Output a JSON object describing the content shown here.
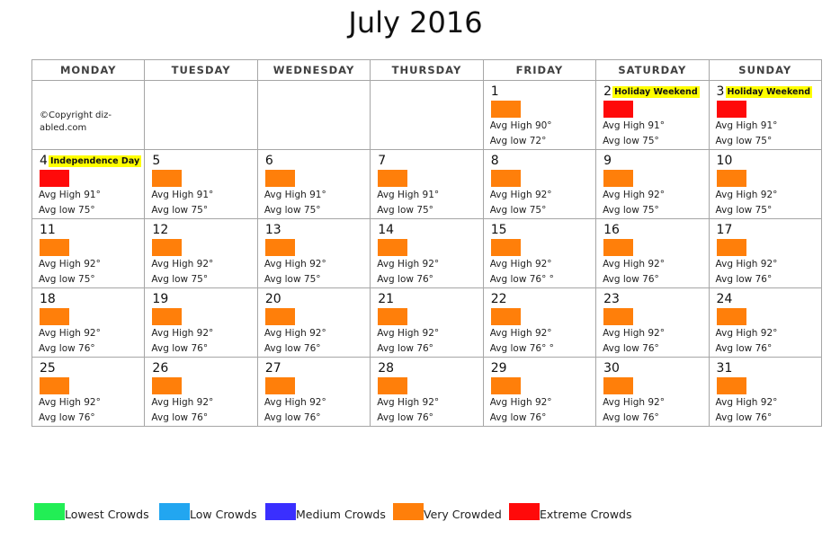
{
  "title": "July 2016",
  "weekdays": [
    "MONDAY",
    "TUESDAY",
    "WEDNESDAY",
    "THURSDAY",
    "FRIDAY",
    "SATURDAY",
    "SUNDAY"
  ],
  "copyright": "©Copyright diz-abled.com",
  "colors": {
    "lowest": "#22ee55",
    "low": "#22a6f0",
    "medium": "#3a2fff",
    "very": "#ff7f0a",
    "extreme": "#ff0a0a"
  },
  "weeks": [
    [
      null,
      null,
      null,
      null,
      {
        "day": "1",
        "crowd": "very",
        "high": "Avg High 90°",
        "low": "Avg low 72°"
      },
      {
        "day": "2",
        "crowd": "extreme",
        "holiday": "Holiday Weekend",
        "high": "Avg High 91°",
        "low": "Avg low 75°"
      },
      {
        "day": "3",
        "crowd": "extreme",
        "holiday": "Holiday Weekend",
        "high": "Avg High 91°",
        "low": "Avg low 75°"
      }
    ],
    [
      {
        "day": "4",
        "crowd": "extreme",
        "holiday": "Independence  Day",
        "high": "Avg High 91°",
        "low": "Avg low 75°"
      },
      {
        "day": "5",
        "crowd": "very",
        "high": "Avg High 91°",
        "low": "Avg low 75°"
      },
      {
        "day": "6",
        "crowd": "very",
        "high": "Avg High 91°",
        "low": "Avg low 75°"
      },
      {
        "day": "7",
        "crowd": "very",
        "high": "Avg High 91°",
        "low": "Avg low 75°"
      },
      {
        "day": "8",
        "crowd": "very",
        "high": "Avg High 92°",
        "low": "Avg low 75°"
      },
      {
        "day": "9",
        "crowd": "very",
        "high": "Avg High 92°",
        "low": "Avg low 75°"
      },
      {
        "day": "10",
        "crowd": "very",
        "high": "Avg High 92°",
        "low": "Avg low 75°"
      }
    ],
    [
      {
        "day": "11",
        "crowd": "very",
        "high": "Avg High 92°",
        "low": "Avg low 75°"
      },
      {
        "day": "12",
        "crowd": "very",
        "high": "Avg High 92°",
        "low": "Avg low 75°"
      },
      {
        "day": "13",
        "crowd": "very",
        "high": "Avg High 92°",
        "low": "Avg low 75°"
      },
      {
        "day": "14",
        "crowd": "very",
        "high": "Avg High 92°",
        "low": "Avg low 76°"
      },
      {
        "day": "15",
        "crowd": "very",
        "high": "Avg High 92°",
        "low": "Avg low 76°    °"
      },
      {
        "day": "16",
        "crowd": "very",
        "high": "Avg High 92°",
        "low": "Avg low 76°"
      },
      {
        "day": "17",
        "crowd": "very",
        "high": "Avg High 92°",
        "low": "Avg low 76°"
      }
    ],
    [
      {
        "day": "18",
        "crowd": "very",
        "high": "Avg High 92°",
        "low": "Avg low 76°"
      },
      {
        "day": "19",
        "crowd": "very",
        "high": "Avg High 92°",
        "low": "Avg low 76°"
      },
      {
        "day": "20",
        "crowd": "very",
        "high": "Avg High 92°",
        "low": "Avg low 76°"
      },
      {
        "day": "21",
        "crowd": "very",
        "high": "Avg High 92°",
        "low": "Avg low 76°"
      },
      {
        "day": "22",
        "crowd": "very",
        "high": "Avg High 92°",
        "low": "Avg low 76°    °"
      },
      {
        "day": "23",
        "crowd": "very",
        "high": "Avg High 92°",
        "low": "Avg low 76°"
      },
      {
        "day": "24",
        "crowd": "very",
        "high": "Avg High 92°",
        "low": "Avg low 76°"
      }
    ],
    [
      {
        "day": "25",
        "crowd": "very",
        "high": "Avg High 92°",
        "low": "Avg low 76°"
      },
      {
        "day": "26",
        "crowd": "very",
        "high": "Avg High 92°",
        "low": "Avg low 76°"
      },
      {
        "day": "27",
        "crowd": "very",
        "high": "Avg High 92°",
        "low": "Avg low 76°"
      },
      {
        "day": "28",
        "crowd": "very",
        "high": "Avg High 92°",
        "low": "Avg low 76°"
      },
      {
        "day": "29",
        "crowd": "very",
        "high": "Avg High 92°",
        "low": "Avg low 76°"
      },
      {
        "day": "30",
        "crowd": "very",
        "high": "Avg High 92°",
        "low": "Avg low 76°"
      },
      {
        "day": "31",
        "crowd": "very",
        "high": "Avg High 92°",
        "low": "Avg low 76°"
      }
    ]
  ],
  "legend": [
    {
      "key": "lowest",
      "label": "Lowest Crowds"
    },
    {
      "key": "low",
      "label": "Low Crowds"
    },
    {
      "key": "medium",
      "label": "Medium Crowds"
    },
    {
      "key": "very",
      "label": "Very Crowded"
    },
    {
      "key": "extreme",
      "label": "Extreme Crowds"
    }
  ]
}
